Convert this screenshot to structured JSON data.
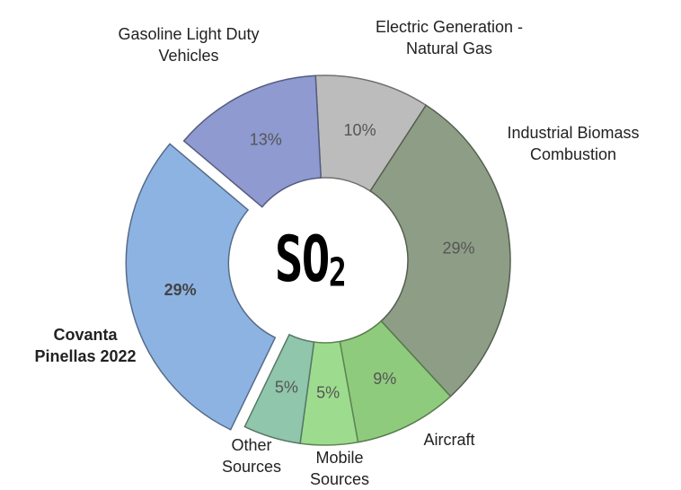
{
  "chart_data": {
    "type": "donut",
    "center_text": "SO",
    "center_subscript": "2",
    "categories": [
      "Electric Generation - Natural Gas",
      "Industrial Biomass Combustion",
      "Aircraft",
      "Mobile Sources",
      "Other Sources",
      "Covanta Pinellas 2022",
      "Gasoline Light Duty Vehicles"
    ],
    "values": [
      10,
      29,
      9,
      5,
      5,
      29,
      13
    ],
    "value_labels": [
      "10%",
      "29%",
      "9%",
      "5%",
      "5%",
      "29%",
      "13%"
    ],
    "colors": [
      "#bcbcbc",
      "#8e9e86",
      "#8fcb7d",
      "#9ddc8e",
      "#8fc6ac",
      "#8db3e2",
      "#8e9ad0"
    ],
    "highlight": 5
  }
}
